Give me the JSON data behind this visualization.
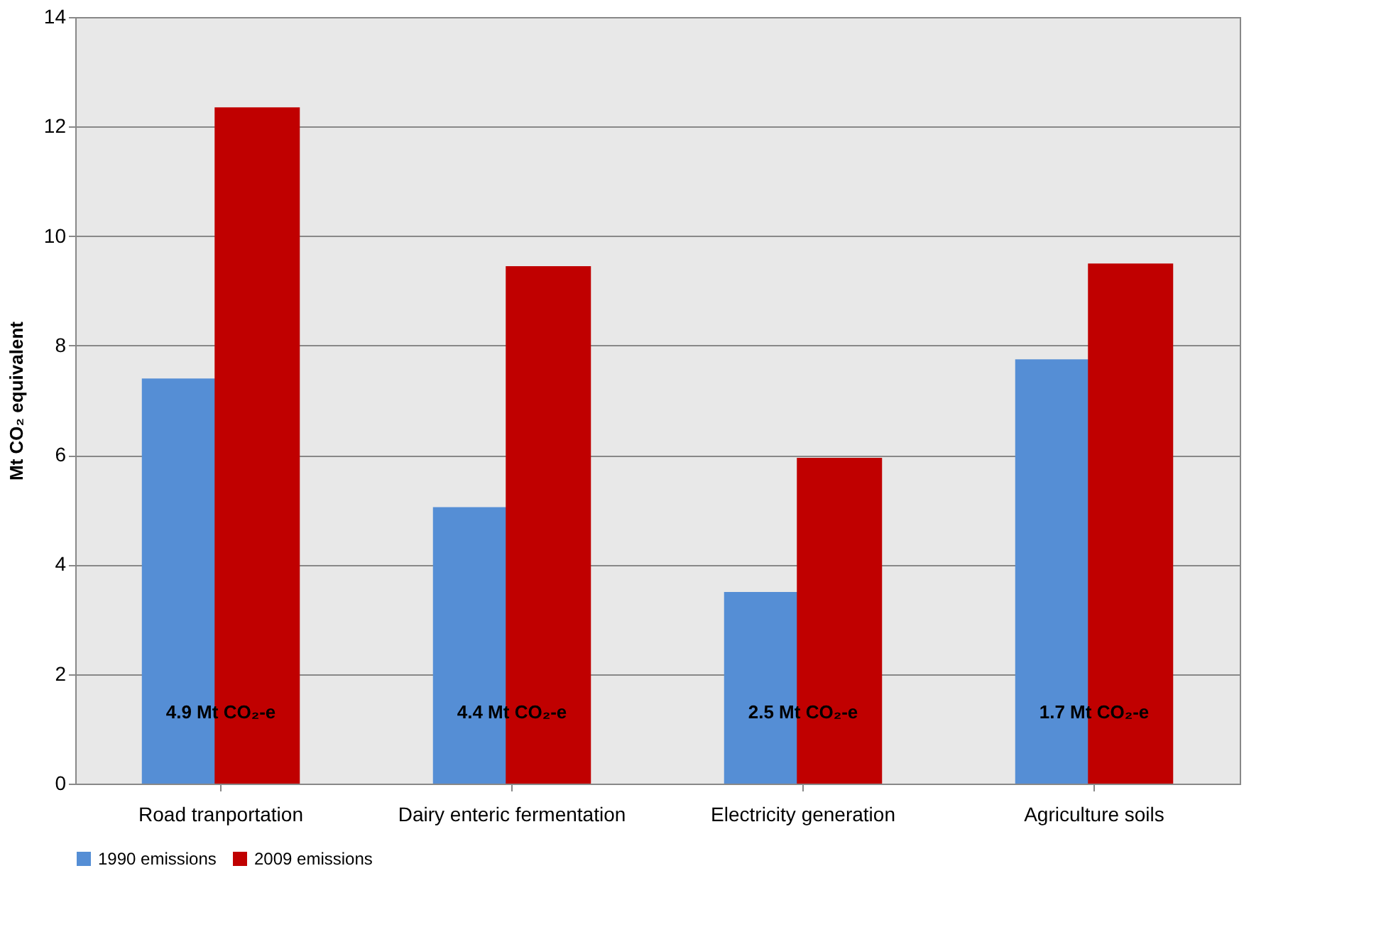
{
  "chart_data": {
    "type": "bar",
    "ylabel": "Mt CO₂ equivalent",
    "categories": [
      "Road tranportation",
      "Dairy enteric fermentation",
      "Electricity generation",
      "Agriculture soils"
    ],
    "series": [
      {
        "name": "1990 emissions",
        "color": "#558ed5",
        "values": [
          7.4,
          5.05,
          3.5,
          7.75
        ]
      },
      {
        "name": "2009 emissions",
        "color": "#c00000",
        "values": [
          12.35,
          9.45,
          5.95,
          9.5
        ]
      }
    ],
    "ylim": [
      0,
      14
    ],
    "yticks": [
      0,
      2,
      4,
      6,
      8,
      10,
      12,
      14
    ],
    "grid": "y",
    "legend": "bottom",
    "annotations": [
      {
        "text": "4.9 Mt CO₂-e",
        "x": "Road tranportation",
        "y": 1.3
      },
      {
        "text": "4.4 Mt CO₂-e",
        "x": "Dairy enteric fermentation",
        "y": 1.3
      },
      {
        "text": "2.5 Mt CO₂-e",
        "x": "Electricity generation",
        "y": 1.3
      },
      {
        "text": "1.7 Mt CO₂-e",
        "x": "Agriculture soils",
        "y": 1.3
      }
    ]
  }
}
